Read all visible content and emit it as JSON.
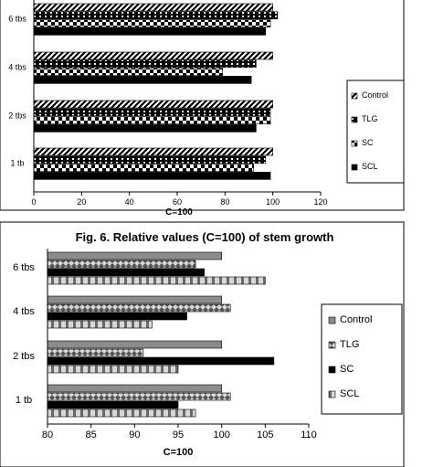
{
  "chart_data": [
    {
      "type": "bar",
      "orientation": "horizontal",
      "title": "",
      "xlabel": "C=100",
      "ylabel": "",
      "xlim": [
        0,
        120
      ],
      "x_ticks": [
        0,
        20,
        40,
        60,
        80,
        100,
        120
      ],
      "grid": false,
      "legend_position": "right",
      "categories": [
        "6 tbs",
        "4 tbs",
        "2 tbs",
        "1 tb"
      ],
      "series": [
        {
          "name": "Control",
          "values": [
            100,
            100,
            100,
            100
          ]
        },
        {
          "name": "TLG",
          "values": [
            102,
            93,
            99,
            97
          ]
        },
        {
          "name": "SC",
          "values": [
            99,
            79,
            99,
            92
          ]
        },
        {
          "name": "SCL",
          "values": [
            97,
            91,
            93,
            99
          ]
        }
      ]
    },
    {
      "type": "bar",
      "orientation": "horizontal",
      "title": "Fig. 6. Relative values (C=100) of stem growth",
      "xlabel": "C=100",
      "ylabel": "",
      "xlim": [
        80,
        110
      ],
      "x_ticks": [
        80,
        85,
        90,
        95,
        100,
        105,
        110
      ],
      "grid": false,
      "legend_position": "right",
      "categories": [
        "6 tbs",
        "4 tbs",
        "2 tbs",
        "1 tb"
      ],
      "series": [
        {
          "name": "Control",
          "values": [
            100,
            100,
            100,
            100
          ]
        },
        {
          "name": "TLG",
          "values": [
            97,
            101,
            91,
            101
          ]
        },
        {
          "name": "SC",
          "values": [
            98,
            96,
            106,
            95
          ]
        },
        {
          "name": "SCL",
          "values": [
            105,
            92,
            95,
            97
          ]
        }
      ]
    }
  ]
}
